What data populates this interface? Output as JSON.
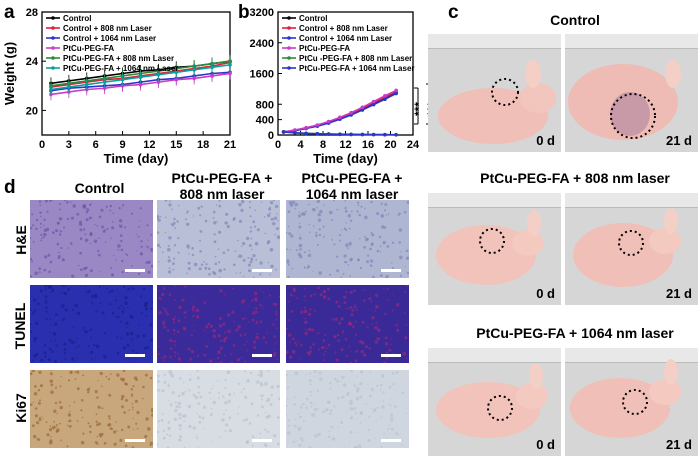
{
  "panels": {
    "a": "a",
    "b": "b",
    "c": "c",
    "d": "d"
  },
  "chart_data": [
    {
      "type": "line",
      "panel": "a",
      "xlabel": "Time (day)",
      "ylabel": "Weight (g)",
      "xlim": [
        0,
        21
      ],
      "ylim": [
        18,
        28
      ],
      "xticks": [
        0,
        3,
        6,
        9,
        12,
        15,
        18,
        21
      ],
      "yticks": [
        20,
        24,
        28
      ],
      "legend": [
        "Control",
        "Control + 808 nm Laser",
        "Control + 1064 nm Laser",
        "PtCu-PEG-FA",
        "PtCu-PEG-FA  + 808 nm Laser",
        "PtCu-PEG-FA  + 1064 nm Laser"
      ],
      "x": [
        1,
        3,
        5,
        7,
        9,
        11,
        13,
        15,
        17,
        19,
        21
      ],
      "series": [
        {
          "name": "Control",
          "color": "#000000",
          "values": [
            22.2,
            22.4,
            22.6,
            22.8,
            23.0,
            23.2,
            23.3,
            23.5,
            23.6,
            23.8,
            24.0
          ]
        },
        {
          "name": "Control + 808 nm Laser",
          "color": "#e0203a",
          "values": [
            21.9,
            22.1,
            22.3,
            22.5,
            22.6,
            22.8,
            23.0,
            23.2,
            23.4,
            23.6,
            23.9
          ]
        },
        {
          "name": "Control + 1064 nm Laser",
          "color": "#2a36c8",
          "values": [
            21.6,
            21.8,
            21.9,
            22.0,
            22.1,
            22.3,
            22.5,
            22.6,
            22.8,
            23.0,
            23.1
          ]
        },
        {
          "name": "PtCu-PEG-FA",
          "color": "#c83cc8",
          "values": [
            21.3,
            21.5,
            21.7,
            21.8,
            22.0,
            22.1,
            22.3,
            22.5,
            22.6,
            22.8,
            23.0
          ]
        },
        {
          "name": "PtCu-PEG-FA  + 808 nm Laser",
          "color": "#2d8a3a",
          "values": [
            22.0,
            22.2,
            22.4,
            22.6,
            22.8,
            23.0,
            23.2,
            23.4,
            23.6,
            23.8,
            24.0
          ]
        },
        {
          "name": "PtCu-PEG-FA  + 1064 nm Laser",
          "color": "#0aa0a0",
          "values": [
            21.7,
            21.9,
            22.1,
            22.3,
            22.5,
            22.7,
            22.9,
            23.1,
            23.3,
            23.5,
            23.7
          ]
        }
      ]
    },
    {
      "type": "line",
      "panel": "b",
      "xlabel": "Time (day)",
      "ylabel": "",
      "xlim": [
        0,
        24
      ],
      "ylim": [
        0,
        3200
      ],
      "xticks": [
        0,
        4,
        8,
        12,
        16,
        20,
        24
      ],
      "yticks": [
        0,
        400,
        800,
        1600,
        2400,
        3200
      ],
      "legend": [
        "Control",
        "Control + 808 nm Laser",
        "Control + 1064 nm Laser",
        "PtCu-PEG-FA",
        "PtCu -PEG-FA + 808 nm Laser",
        "PtCu-PEG-FA + 1064 nm Laser"
      ],
      "significance": [
        "***",
        "***"
      ],
      "x": [
        1,
        3,
        5,
        7,
        9,
        11,
        13,
        15,
        17,
        19,
        21
      ],
      "series": [
        {
          "name": "Control",
          "color": "#000000",
          "values": [
            80,
            120,
            180,
            240,
            320,
            430,
            540,
            680,
            820,
            950,
            1100
          ]
        },
        {
          "name": "Control + 808 nm Laser",
          "color": "#e0203a",
          "values": [
            80,
            125,
            185,
            250,
            340,
            450,
            560,
            700,
            840,
            980,
            1130
          ]
        },
        {
          "name": "Control + 1064 nm Laser",
          "color": "#2a36c8",
          "values": [
            80,
            110,
            170,
            230,
            310,
            410,
            520,
            650,
            790,
            930,
            1080
          ]
        },
        {
          "name": "PtCu-PEG-FA",
          "color": "#c83cc8",
          "values": [
            80,
            130,
            190,
            260,
            350,
            460,
            580,
            720,
            870,
            1020,
            1160
          ]
        },
        {
          "name": "PtCu -PEG-FA + 808 nm Laser",
          "color": "#2d8a3a",
          "values": [
            80,
            60,
            45,
            35,
            28,
            22,
            18,
            15,
            12,
            10,
            8
          ]
        },
        {
          "name": "PtCu-PEG-FA + 1064 nm Laser",
          "color": "#2a36c8",
          "values": [
            80,
            55,
            40,
            30,
            22,
            18,
            14,
            12,
            10,
            8,
            6
          ]
        }
      ]
    }
  ],
  "panel_c": {
    "groups": [
      {
        "title": "Control",
        "day0": "0 d",
        "day21": "21 d"
      },
      {
        "title": "PtCu-PEG-FA + 808 nm laser",
        "day0": "0 d",
        "day21": "21 d"
      },
      {
        "title": "PtCu-PEG-FA + 1064 nm laser",
        "day0": "0 d",
        "day21": "21 d"
      }
    ]
  },
  "panel_d": {
    "columns": [
      "Control",
      "PtCu-PEG-FA +\n808 nm laser",
      "PtCu-PEG-FA +\n1064 nm laser"
    ],
    "rows": [
      "H&E",
      "TUNEL",
      "Ki67"
    ],
    "colors": {
      "he": "#9a88c4",
      "tunel": "#2a2fb0",
      "tunel_red": "#7a2a8a",
      "ki67": "#c9a77c",
      "ki67_light": "#cfd6e0"
    }
  }
}
